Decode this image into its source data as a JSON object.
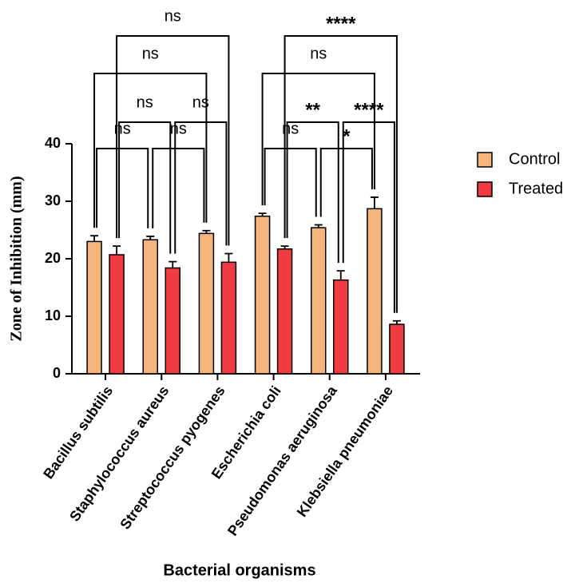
{
  "chart_data": {
    "type": "bar",
    "xlabel": "Bacterial organisms",
    "ylabel": "Zone of Inhibition (mm)",
    "categories": [
      "Bacillus subtilis",
      "Staphylococcus aureus",
      "Streptococcus pyogenes",
      "Escherichia coli",
      "Pseudomonas aeruginosa",
      "Klebsiella pneumoniae"
    ],
    "series": [
      {
        "name": "Control",
        "color": "#f4b57c",
        "values": [
          23,
          23.3,
          24.4,
          27.4,
          25.4,
          28.7
        ],
        "errors": [
          1,
          0.6,
          0.5,
          0.5,
          0.5,
          2
        ]
      },
      {
        "name": "Treated",
        "color": "#ef3b41",
        "values": [
          20.7,
          18.4,
          19.4,
          21.7,
          16.3,
          8.6
        ],
        "errors": [
          1.5,
          1.1,
          1.5,
          0.5,
          1.6,
          0.6
        ]
      }
    ],
    "ylim": [
      0,
      40
    ],
    "yticks": [
      0,
      10,
      20,
      30,
      40
    ],
    "legend": "right",
    "comparisons": [
      {
        "label": "ns",
        "series": 0,
        "pair": [
          0,
          1
        ]
      },
      {
        "label": "ns",
        "series": 0,
        "pair": [
          1,
          2
        ]
      },
      {
        "label": "ns",
        "series": 1,
        "pair": [
          0,
          1
        ]
      },
      {
        "label": "ns",
        "series": 1,
        "pair": [
          1,
          2
        ]
      },
      {
        "label": "ns",
        "series": 0,
        "pair": [
          0,
          2
        ]
      },
      {
        "label": "ns",
        "series": 1,
        "pair": [
          0,
          2
        ]
      },
      {
        "label": "ns",
        "series": 0,
        "pair": [
          3,
          4
        ]
      },
      {
        "label": "*",
        "series": 0,
        "pair": [
          4,
          5
        ]
      },
      {
        "label": "**",
        "series": 1,
        "pair": [
          3,
          4
        ]
      },
      {
        "label": "****",
        "series": 1,
        "pair": [
          4,
          5
        ]
      },
      {
        "label": "ns",
        "series": 0,
        "pair": [
          3,
          5
        ]
      },
      {
        "label": "****",
        "series": 1,
        "pair": [
          3,
          5
        ]
      }
    ]
  }
}
